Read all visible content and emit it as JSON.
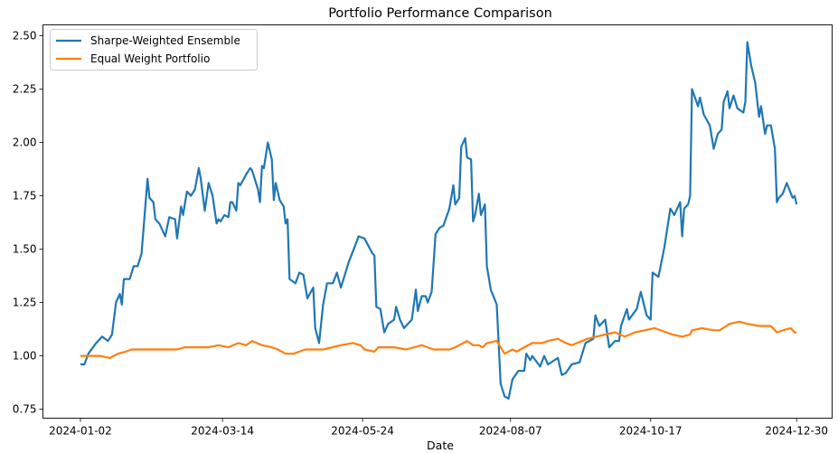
{
  "chart_data": {
    "type": "line",
    "title": "Portfolio Performance Comparison",
    "xlabel": "Date",
    "ylabel": "",
    "xlim": [
      "2023-12-14",
      "2025-01-17"
    ],
    "ylim": [
      0.708,
      2.551
    ],
    "xticks": [
      "2024-01-02",
      "2024-03-14",
      "2024-05-24",
      "2024-08-07",
      "2024-10-17",
      "2024-12-30"
    ],
    "yticks": [
      "0.75",
      "1.00",
      "1.25",
      "1.50",
      "1.75",
      "2.00",
      "2.25",
      "2.50"
    ],
    "grid": false,
    "legend_position": "top-left",
    "series": [
      {
        "name": "Sharpe-Weighted Ensemble",
        "color": "#1f77b4",
        "points": [
          [
            "2024-01-02",
            0.96
          ],
          [
            "2024-01-04",
            0.96
          ],
          [
            "2024-01-06",
            1.01
          ],
          [
            "2024-01-10",
            1.06
          ],
          [
            "2024-01-13",
            1.09
          ],
          [
            "2024-01-16",
            1.07
          ],
          [
            "2024-01-18",
            1.1
          ],
          [
            "2024-01-20",
            1.25
          ],
          [
            "2024-01-22",
            1.29
          ],
          [
            "2024-01-23",
            1.24
          ],
          [
            "2024-01-24",
            1.36
          ],
          [
            "2024-01-27",
            1.36
          ],
          [
            "2024-01-29",
            1.42
          ],
          [
            "2024-01-31",
            1.42
          ],
          [
            "2024-02-02",
            1.48
          ],
          [
            "2024-02-05",
            1.83
          ],
          [
            "2024-02-06",
            1.74
          ],
          [
            "2024-02-08",
            1.72
          ],
          [
            "2024-02-09",
            1.64
          ],
          [
            "2024-02-11",
            1.62
          ],
          [
            "2024-02-14",
            1.56
          ],
          [
            "2024-02-16",
            1.65
          ],
          [
            "2024-02-19",
            1.64
          ],
          [
            "2024-02-20",
            1.55
          ],
          [
            "2024-02-22",
            1.7
          ],
          [
            "2024-02-23",
            1.66
          ],
          [
            "2024-02-25",
            1.77
          ],
          [
            "2024-02-27",
            1.75
          ],
          [
            "2024-02-29",
            1.78
          ],
          [
            "2024-03-02",
            1.88
          ],
          [
            "2024-03-03",
            1.83
          ],
          [
            "2024-03-05",
            1.68
          ],
          [
            "2024-03-07",
            1.81
          ],
          [
            "2024-03-09",
            1.75
          ],
          [
            "2024-03-11",
            1.62
          ],
          [
            "2024-03-12",
            1.64
          ],
          [
            "2024-03-13",
            1.63
          ],
          [
            "2024-03-15",
            1.66
          ],
          [
            "2024-03-17",
            1.65
          ],
          [
            "2024-03-18",
            1.72
          ],
          [
            "2024-03-19",
            1.72
          ],
          [
            "2024-03-21",
            1.68
          ],
          [
            "2024-03-22",
            1.81
          ],
          [
            "2024-03-23",
            1.8
          ],
          [
            "2024-03-26",
            1.85
          ],
          [
            "2024-03-28",
            1.88
          ],
          [
            "2024-03-29",
            1.87
          ],
          [
            "2024-04-01",
            1.78
          ],
          [
            "2024-04-02",
            1.72
          ],
          [
            "2024-04-03",
            1.89
          ],
          [
            "2024-04-04",
            1.88
          ],
          [
            "2024-04-06",
            2.0
          ],
          [
            "2024-04-08",
            1.92
          ],
          [
            "2024-04-09",
            1.73
          ],
          [
            "2024-04-10",
            1.81
          ],
          [
            "2024-04-12",
            1.73
          ],
          [
            "2024-04-14",
            1.7
          ],
          [
            "2024-04-15",
            1.62
          ],
          [
            "2024-04-16",
            1.64
          ],
          [
            "2024-04-17",
            1.36
          ],
          [
            "2024-04-20",
            1.34
          ],
          [
            "2024-04-22",
            1.39
          ],
          [
            "2024-04-24",
            1.38
          ],
          [
            "2024-04-26",
            1.27
          ],
          [
            "2024-04-29",
            1.32
          ],
          [
            "2024-04-30",
            1.13
          ],
          [
            "2024-05-02",
            1.06
          ],
          [
            "2024-05-04",
            1.24
          ],
          [
            "2024-05-06",
            1.34
          ],
          [
            "2024-05-09",
            1.34
          ],
          [
            "2024-05-11",
            1.39
          ],
          [
            "2024-05-13",
            1.32
          ],
          [
            "2024-05-17",
            1.44
          ],
          [
            "2024-05-20",
            1.51
          ],
          [
            "2024-05-22",
            1.56
          ],
          [
            "2024-05-25",
            1.55
          ],
          [
            "2024-05-29",
            1.48
          ],
          [
            "2024-05-30",
            1.47
          ],
          [
            "2024-05-31",
            1.23
          ],
          [
            "2024-06-02",
            1.22
          ],
          [
            "2024-06-04",
            1.11
          ],
          [
            "2024-06-06",
            1.15
          ],
          [
            "2024-06-09",
            1.17
          ],
          [
            "2024-06-10",
            1.23
          ],
          [
            "2024-06-12",
            1.17
          ],
          [
            "2024-06-14",
            1.13
          ],
          [
            "2024-06-18",
            1.17
          ],
          [
            "2024-06-20",
            1.31
          ],
          [
            "2024-06-21",
            1.21
          ],
          [
            "2024-06-23",
            1.28
          ],
          [
            "2024-06-25",
            1.28
          ],
          [
            "2024-06-26",
            1.25
          ],
          [
            "2024-06-28",
            1.3
          ],
          [
            "2024-06-30",
            1.57
          ],
          [
            "2024-07-02",
            1.6
          ],
          [
            "2024-07-04",
            1.61
          ],
          [
            "2024-07-07",
            1.69
          ],
          [
            "2024-07-09",
            1.8
          ],
          [
            "2024-07-10",
            1.71
          ],
          [
            "2024-07-12",
            1.74
          ],
          [
            "2024-07-13",
            1.98
          ],
          [
            "2024-07-15",
            2.02
          ],
          [
            "2024-07-16",
            1.93
          ],
          [
            "2024-07-18",
            1.92
          ],
          [
            "2024-07-19",
            1.63
          ],
          [
            "2024-07-20",
            1.66
          ],
          [
            "2024-07-22",
            1.76
          ],
          [
            "2024-07-23",
            1.66
          ],
          [
            "2024-07-25",
            1.71
          ],
          [
            "2024-07-26",
            1.42
          ],
          [
            "2024-07-28",
            1.31
          ],
          [
            "2024-07-31",
            1.24
          ],
          [
            "2024-08-02",
            0.87
          ],
          [
            "2024-08-04",
            0.81
          ],
          [
            "2024-08-06",
            0.8
          ],
          [
            "2024-08-08",
            0.89
          ],
          [
            "2024-08-11",
            0.93
          ],
          [
            "2024-08-14",
            0.93
          ],
          [
            "2024-08-15",
            1.01
          ],
          [
            "2024-08-17",
            0.98
          ],
          [
            "2024-08-18",
            1.0
          ],
          [
            "2024-08-22",
            0.95
          ],
          [
            "2024-08-24",
            1.0
          ],
          [
            "2024-08-26",
            0.96
          ],
          [
            "2024-08-31",
            0.99
          ],
          [
            "2024-09-02",
            0.91
          ],
          [
            "2024-09-04",
            0.92
          ],
          [
            "2024-09-07",
            0.96
          ],
          [
            "2024-09-11",
            0.97
          ],
          [
            "2024-09-14",
            1.06
          ],
          [
            "2024-09-18",
            1.08
          ],
          [
            "2024-09-19",
            1.19
          ],
          [
            "2024-09-21",
            1.14
          ],
          [
            "2024-09-24",
            1.17
          ],
          [
            "2024-09-26",
            1.04
          ],
          [
            "2024-09-29",
            1.07
          ],
          [
            "2024-10-01",
            1.07
          ],
          [
            "2024-10-02",
            1.14
          ],
          [
            "2024-10-05",
            1.22
          ],
          [
            "2024-10-06",
            1.17
          ],
          [
            "2024-10-10",
            1.22
          ],
          [
            "2024-10-12",
            1.3
          ],
          [
            "2024-10-15",
            1.19
          ],
          [
            "2024-10-17",
            1.17
          ],
          [
            "2024-10-18",
            1.39
          ],
          [
            "2024-10-21",
            1.37
          ],
          [
            "2024-10-24",
            1.51
          ],
          [
            "2024-10-27",
            1.69
          ],
          [
            "2024-10-29",
            1.66
          ],
          [
            "2024-11-01",
            1.72
          ],
          [
            "2024-11-02",
            1.56
          ],
          [
            "2024-11-03",
            1.69
          ],
          [
            "2024-11-05",
            1.71
          ],
          [
            "2024-11-06",
            1.75
          ],
          [
            "2024-11-07",
            2.25
          ],
          [
            "2024-11-10",
            2.17
          ],
          [
            "2024-11-11",
            2.21
          ],
          [
            "2024-11-13",
            2.13
          ],
          [
            "2024-11-16",
            2.08
          ],
          [
            "2024-11-18",
            1.97
          ],
          [
            "2024-11-20",
            2.04
          ],
          [
            "2024-11-22",
            2.06
          ],
          [
            "2024-11-23",
            2.19
          ],
          [
            "2024-11-25",
            2.24
          ],
          [
            "2024-11-26",
            2.16
          ],
          [
            "2024-11-28",
            2.22
          ],
          [
            "2024-11-30",
            2.16
          ],
          [
            "2024-12-03",
            2.14
          ],
          [
            "2024-12-04",
            2.19
          ],
          [
            "2024-12-05",
            2.47
          ],
          [
            "2024-12-07",
            2.36
          ],
          [
            "2024-12-09",
            2.28
          ],
          [
            "2024-12-11",
            2.12
          ],
          [
            "2024-12-12",
            2.17
          ],
          [
            "2024-12-14",
            2.04
          ],
          [
            "2024-12-15",
            2.08
          ],
          [
            "2024-12-17",
            2.08
          ],
          [
            "2024-12-19",
            1.97
          ],
          [
            "2024-12-20",
            1.72
          ],
          [
            "2024-12-21",
            1.74
          ],
          [
            "2024-12-23",
            1.76
          ],
          [
            "2024-12-25",
            1.81
          ],
          [
            "2024-12-28",
            1.74
          ],
          [
            "2024-12-29",
            1.75
          ],
          [
            "2024-12-30",
            1.71
          ]
        ]
      },
      {
        "name": "Equal Weight Portfolio",
        "color": "#ff7f0e",
        "points": [
          [
            "2024-01-02",
            1.0
          ],
          [
            "2024-01-06",
            1.0
          ],
          [
            "2024-01-12",
            1.0
          ],
          [
            "2024-01-17",
            0.99
          ],
          [
            "2024-01-21",
            1.01
          ],
          [
            "2024-01-25",
            1.02
          ],
          [
            "2024-01-28",
            1.03
          ],
          [
            "2024-02-01",
            1.03
          ],
          [
            "2024-02-07",
            1.03
          ],
          [
            "2024-02-13",
            1.03
          ],
          [
            "2024-02-16",
            1.03
          ],
          [
            "2024-02-20",
            1.03
          ],
          [
            "2024-02-24",
            1.04
          ],
          [
            "2024-03-02",
            1.04
          ],
          [
            "2024-03-07",
            1.04
          ],
          [
            "2024-03-12",
            1.05
          ],
          [
            "2024-03-17",
            1.04
          ],
          [
            "2024-03-22",
            1.06
          ],
          [
            "2024-03-26",
            1.05
          ],
          [
            "2024-03-29",
            1.07
          ],
          [
            "2024-04-03",
            1.05
          ],
          [
            "2024-04-08",
            1.04
          ],
          [
            "2024-04-11",
            1.03
          ],
          [
            "2024-04-15",
            1.01
          ],
          [
            "2024-04-19",
            1.01
          ],
          [
            "2024-04-25",
            1.03
          ],
          [
            "2024-04-29",
            1.03
          ],
          [
            "2024-05-04",
            1.03
          ],
          [
            "2024-05-13",
            1.05
          ],
          [
            "2024-05-19",
            1.06
          ],
          [
            "2024-05-23",
            1.05
          ],
          [
            "2024-05-25",
            1.03
          ],
          [
            "2024-05-30",
            1.02
          ],
          [
            "2024-06-01",
            1.04
          ],
          [
            "2024-06-09",
            1.04
          ],
          [
            "2024-06-15",
            1.03
          ],
          [
            "2024-06-23",
            1.05
          ],
          [
            "2024-06-29",
            1.03
          ],
          [
            "2024-07-07",
            1.03
          ],
          [
            "2024-07-10",
            1.04
          ],
          [
            "2024-07-16",
            1.07
          ],
          [
            "2024-07-19",
            1.05
          ],
          [
            "2024-07-22",
            1.05
          ],
          [
            "2024-07-24",
            1.04
          ],
          [
            "2024-07-26",
            1.06
          ],
          [
            "2024-07-31",
            1.07
          ],
          [
            "2024-08-04",
            1.01
          ],
          [
            "2024-08-08",
            1.03
          ],
          [
            "2024-08-10",
            1.02
          ],
          [
            "2024-08-14",
            1.04
          ],
          [
            "2024-08-18",
            1.06
          ],
          [
            "2024-08-23",
            1.06
          ],
          [
            "2024-08-26",
            1.07
          ],
          [
            "2024-08-31",
            1.08
          ],
          [
            "2024-09-04",
            1.06
          ],
          [
            "2024-09-07",
            1.05
          ],
          [
            "2024-09-15",
            1.08
          ],
          [
            "2024-09-24",
            1.1
          ],
          [
            "2024-09-29",
            1.11
          ],
          [
            "2024-10-04",
            1.09
          ],
          [
            "2024-10-09",
            1.11
          ],
          [
            "2024-10-14",
            1.12
          ],
          [
            "2024-10-19",
            1.13
          ],
          [
            "2024-10-25",
            1.11
          ],
          [
            "2024-10-28",
            1.1
          ],
          [
            "2024-11-02",
            1.09
          ],
          [
            "2024-11-06",
            1.1
          ],
          [
            "2024-11-07",
            1.12
          ],
          [
            "2024-11-12",
            1.13
          ],
          [
            "2024-11-18",
            1.12
          ],
          [
            "2024-11-21",
            1.12
          ],
          [
            "2024-11-26",
            1.15
          ],
          [
            "2024-12-01",
            1.16
          ],
          [
            "2024-12-05",
            1.15
          ],
          [
            "2024-12-11",
            1.14
          ],
          [
            "2024-12-17",
            1.14
          ],
          [
            "2024-12-20",
            1.11
          ],
          [
            "2024-12-23",
            1.12
          ],
          [
            "2024-12-27",
            1.13
          ],
          [
            "2024-12-29",
            1.11
          ],
          [
            "2024-12-30",
            1.11
          ]
        ]
      }
    ]
  }
}
